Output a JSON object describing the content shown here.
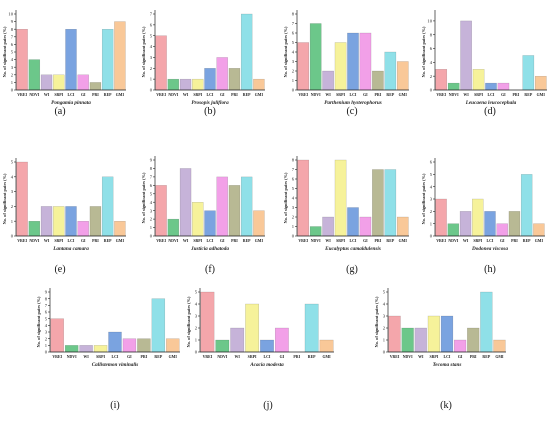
{
  "figure": {
    "colors": {
      "VREI": "#f4a6ab",
      "NDVI": "#6cc78a",
      "WI": "#c6b3d9",
      "SRPI": "#f6f29a",
      "LCI": "#7aa3e0",
      "GI": "#f2a0e8",
      "PRI": "#b8b994",
      "REP": "#8fe0e8",
      "GMI": "#f9c898"
    }
  },
  "chart_data": [
    {
      "type": "bar",
      "panel_label": "(a)",
      "title": "Pongamia pinnata",
      "ylabel": "No. of significant pairs (%)",
      "xlabel": "",
      "categories": [
        "VREI",
        "NDVI",
        "WI",
        "SRPI",
        "LCI",
        "GI",
        "PRI",
        "REP",
        "GMI"
      ],
      "values": [
        8,
        4,
        2,
        2,
        8,
        2,
        1,
        8,
        9
      ],
      "ylim": [
        0,
        10
      ],
      "yticks": [
        0,
        1,
        2,
        3,
        4,
        5,
        6,
        7,
        8,
        9,
        10
      ]
    },
    {
      "type": "bar",
      "panel_label": "(b)",
      "title": "Prosopis juliflora",
      "ylabel": "No. of significant pairs (%)",
      "xlabel": "",
      "categories": [
        "VREI",
        "NDVI",
        "WI",
        "SRPI",
        "LCI",
        "GI",
        "PRI",
        "REP",
        "GMI"
      ],
      "values": [
        5,
        1,
        1,
        1,
        2,
        3,
        2,
        7,
        1
      ],
      "ylim": [
        0,
        7
      ],
      "yticks": [
        0,
        1,
        2,
        3,
        4,
        5,
        6,
        7
      ]
    },
    {
      "type": "bar",
      "panel_label": "(c)",
      "title": "Parthenium hysterophorus",
      "ylabel": "No. of significant pairs (%)",
      "xlabel": "",
      "categories": [
        "VREI",
        "NDVI",
        "WI",
        "SRPI",
        "LCI",
        "GI",
        "PRI",
        "REP",
        "GMI"
      ],
      "values": [
        5,
        7,
        2,
        5,
        6,
        6,
        2,
        4,
        3
      ],
      "ylim": [
        0,
        8
      ],
      "yticks": [
        0,
        1,
        2,
        3,
        4,
        5,
        6,
        7,
        8
      ]
    },
    {
      "type": "bar",
      "panel_label": "(d)",
      "title": "Leucaena leucocephala",
      "ylabel": "No. of significant pairs (%)",
      "xlabel": "",
      "categories": [
        "VREI",
        "NDVI",
        "WI",
        "SRPI",
        "LCI",
        "GI",
        "PRI",
        "REP",
        "GMI"
      ],
      "values": [
        3,
        1,
        10,
        3,
        1,
        1,
        0,
        5,
        2
      ],
      "ylim": [
        0,
        11
      ],
      "yticks": [
        0,
        2,
        4,
        6,
        8,
        10
      ]
    },
    {
      "type": "bar",
      "panel_label": "(e)",
      "title": "Lantana camara",
      "ylabel": "No. of significant pairs (%)",
      "xlabel": "",
      "categories": [
        "VREI",
        "NDVI",
        "WI",
        "SRPI",
        "LCI",
        "GI",
        "PRI",
        "REP",
        "GMI"
      ],
      "values": [
        5,
        1,
        2,
        2,
        2,
        1,
        2,
        4,
        1
      ],
      "ylim": [
        0,
        5
      ],
      "yticks": [
        0,
        1,
        2,
        3,
        4,
        5
      ]
    },
    {
      "type": "bar",
      "panel_label": "(f)",
      "title": "Justicia adhatoda",
      "ylabel": "No. of significant pairs (%)",
      "xlabel": "",
      "categories": [
        "VREI",
        "NDVI",
        "WI",
        "SRPI",
        "LCI",
        "GI",
        "PRI",
        "REP",
        "GMI"
      ],
      "values": [
        6,
        2,
        8,
        4,
        3,
        7,
        6,
        7,
        3
      ],
      "ylim": [
        0,
        9
      ],
      "yticks": [
        0,
        1,
        2,
        3,
        4,
        5,
        6,
        7,
        8,
        9
      ]
    },
    {
      "type": "bar",
      "panel_label": "(g)",
      "title": "Eucalyptus camaldulensis",
      "ylabel": "No. of significant pairs (%)",
      "xlabel": "",
      "categories": [
        "VREI",
        "NDVI",
        "WI",
        "SRPI",
        "LCI",
        "GI",
        "PRI",
        "REP",
        "GMI"
      ],
      "values": [
        8,
        1,
        2,
        8,
        3,
        2,
        7,
        7,
        2
      ],
      "ylim": [
        0,
        8
      ],
      "yticks": [
        0,
        1,
        2,
        3,
        4,
        5,
        6,
        7,
        8
      ]
    },
    {
      "type": "bar",
      "panel_label": "(h)",
      "title": "Dodonea viscosa",
      "ylabel": "No. of significant pairs (%)",
      "xlabel": "",
      "categories": [
        "VREI",
        "NDVI",
        "WI",
        "SRPI",
        "LCI",
        "GI",
        "PRI",
        "REP",
        "GMI"
      ],
      "values": [
        3,
        1,
        2,
        3,
        2,
        1,
        2,
        5,
        1
      ],
      "ylim": [
        0,
        6
      ],
      "yticks": [
        0,
        1,
        2,
        3,
        4,
        5,
        6
      ]
    },
    {
      "type": "bar",
      "panel_label": "(i)",
      "title": "Callistemon viminalis",
      "ylabel": "No. of significant pairs (%)",
      "xlabel": "",
      "categories": [
        "VREI",
        "NDVI",
        "WI",
        "SRPI",
        "LCI",
        "GI",
        "PRI",
        "REP",
        "GMI"
      ],
      "values": [
        5,
        1,
        1,
        1,
        3,
        2,
        2,
        8,
        2
      ],
      "ylim": [
        0,
        9
      ],
      "yticks": [
        0,
        1,
        2,
        3,
        4,
        5,
        6,
        7,
        8,
        9
      ]
    },
    {
      "type": "bar",
      "panel_label": "(j)",
      "title": "Acacia modesta",
      "ylabel": "No. of significant pairs (%)",
      "xlabel": "",
      "categories": [
        "VREI",
        "NDVI",
        "WI",
        "SRPI",
        "LCI",
        "GI",
        "PRI",
        "REP",
        "GMI"
      ],
      "values": [
        5,
        1,
        2,
        4,
        1,
        2,
        0,
        4,
        1
      ],
      "ylim": [
        0,
        5
      ],
      "yticks": [
        0,
        1,
        2,
        3,
        4,
        5
      ]
    },
    {
      "type": "bar",
      "panel_label": "(k)",
      "title": "Tecoma stans",
      "ylabel": "No. of significant pairs (%)",
      "xlabel": "",
      "categories": [
        "VREI",
        "NDVI",
        "WI",
        "SRPI",
        "LCI",
        "GI",
        "PRI",
        "REP",
        "GMI"
      ],
      "values": [
        3,
        2,
        2,
        3,
        3,
        1,
        2,
        5,
        1
      ],
      "ylim": [
        0,
        5
      ],
      "yticks": [
        0,
        1,
        2,
        3,
        4,
        5
      ]
    }
  ]
}
